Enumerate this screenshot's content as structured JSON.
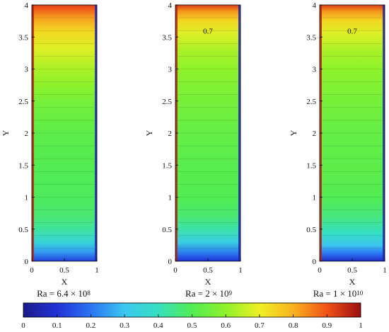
{
  "chart_data": {
    "type": "heatmap",
    "panels": [
      {
        "xlabel": "X",
        "ylabel": "Y",
        "xlim": [
          0,
          1
        ],
        "ylim": [
          0,
          4
        ],
        "x_ticks": [
          "0",
          "0.5",
          "1"
        ],
        "y_ticks": [
          "0",
          "0.5",
          "1",
          "1.5",
          "2",
          "2.5",
          "3",
          "3.5",
          "4"
        ],
        "caption": {
          "prefix": "Ra = 6.4 × 10",
          "exponent": "8"
        },
        "contour_annotation": "",
        "temperature_profile": [
          [
            0.0,
            0.12
          ],
          [
            0.15,
            0.25
          ],
          [
            0.3,
            0.35
          ],
          [
            0.5,
            0.43
          ],
          [
            0.7,
            0.47
          ],
          [
            1.0,
            0.49
          ],
          [
            1.5,
            0.5
          ],
          [
            2.0,
            0.52
          ],
          [
            2.5,
            0.56
          ],
          [
            2.75,
            0.6
          ],
          [
            3.0,
            0.63
          ],
          [
            3.3,
            0.68
          ],
          [
            3.6,
            0.74
          ],
          [
            3.8,
            0.82
          ],
          [
            3.95,
            0.9
          ],
          [
            4.0,
            0.93
          ]
        ]
      },
      {
        "xlabel": "X",
        "ylabel": "Y",
        "xlim": [
          0,
          1
        ],
        "ylim": [
          0,
          4
        ],
        "x_ticks": [
          "0",
          "0.5",
          "1"
        ],
        "y_ticks": [
          "0",
          "0.5",
          "1",
          "1.5",
          "2",
          "2.5",
          "3",
          "3.5",
          "4"
        ],
        "caption": {
          "prefix": "Ra = 2 × 10",
          "exponent": "9"
        },
        "contour_annotation": "0.7",
        "temperature_profile": [
          [
            0.0,
            0.1
          ],
          [
            0.15,
            0.22
          ],
          [
            0.3,
            0.33
          ],
          [
            0.5,
            0.42
          ],
          [
            0.7,
            0.47
          ],
          [
            1.0,
            0.5
          ],
          [
            1.5,
            0.51
          ],
          [
            2.0,
            0.53
          ],
          [
            2.5,
            0.56
          ],
          [
            3.0,
            0.6
          ],
          [
            3.3,
            0.63
          ],
          [
            3.55,
            0.68
          ],
          [
            3.75,
            0.74
          ],
          [
            3.9,
            0.83
          ],
          [
            4.0,
            0.93
          ]
        ]
      },
      {
        "xlabel": "X",
        "ylabel": "Y",
        "xlim": [
          0,
          1
        ],
        "ylim": [
          0,
          4
        ],
        "x_ticks": [
          "0",
          "0.5",
          "1"
        ],
        "y_ticks": [
          "0",
          "0.5",
          "1",
          "1.5",
          "2",
          "2.5",
          "3",
          "3.5",
          "4"
        ],
        "caption": {
          "prefix": "Ra = 1 × 10",
          "exponent": "10"
        },
        "contour_annotation": "0.7",
        "temperature_profile": [
          [
            0.0,
            0.08
          ],
          [
            0.12,
            0.2
          ],
          [
            0.25,
            0.3
          ],
          [
            0.45,
            0.4
          ],
          [
            0.7,
            0.46
          ],
          [
            1.0,
            0.5
          ],
          [
            1.5,
            0.52
          ],
          [
            2.0,
            0.53
          ],
          [
            2.5,
            0.56
          ],
          [
            3.0,
            0.6
          ],
          [
            3.3,
            0.63
          ],
          [
            3.55,
            0.68
          ],
          [
            3.75,
            0.74
          ],
          [
            3.9,
            0.83
          ],
          [
            4.0,
            0.93
          ]
        ]
      }
    ],
    "colorbar": {
      "range": [
        0,
        1
      ],
      "ticks": [
        "0",
        "0.1",
        "0.2",
        "0.3",
        "0.4",
        "0.5",
        "0.6",
        "0.7",
        "0.8",
        "0.9",
        "1"
      ],
      "colors": [
        "#1c1a8a",
        "#2131d6",
        "#2a75f2",
        "#3bc7ef",
        "#36e0c0",
        "#52ec52",
        "#8ef22a",
        "#f0f024",
        "#f8b21e",
        "#ef5318",
        "#9c0e0e"
      ]
    }
  }
}
